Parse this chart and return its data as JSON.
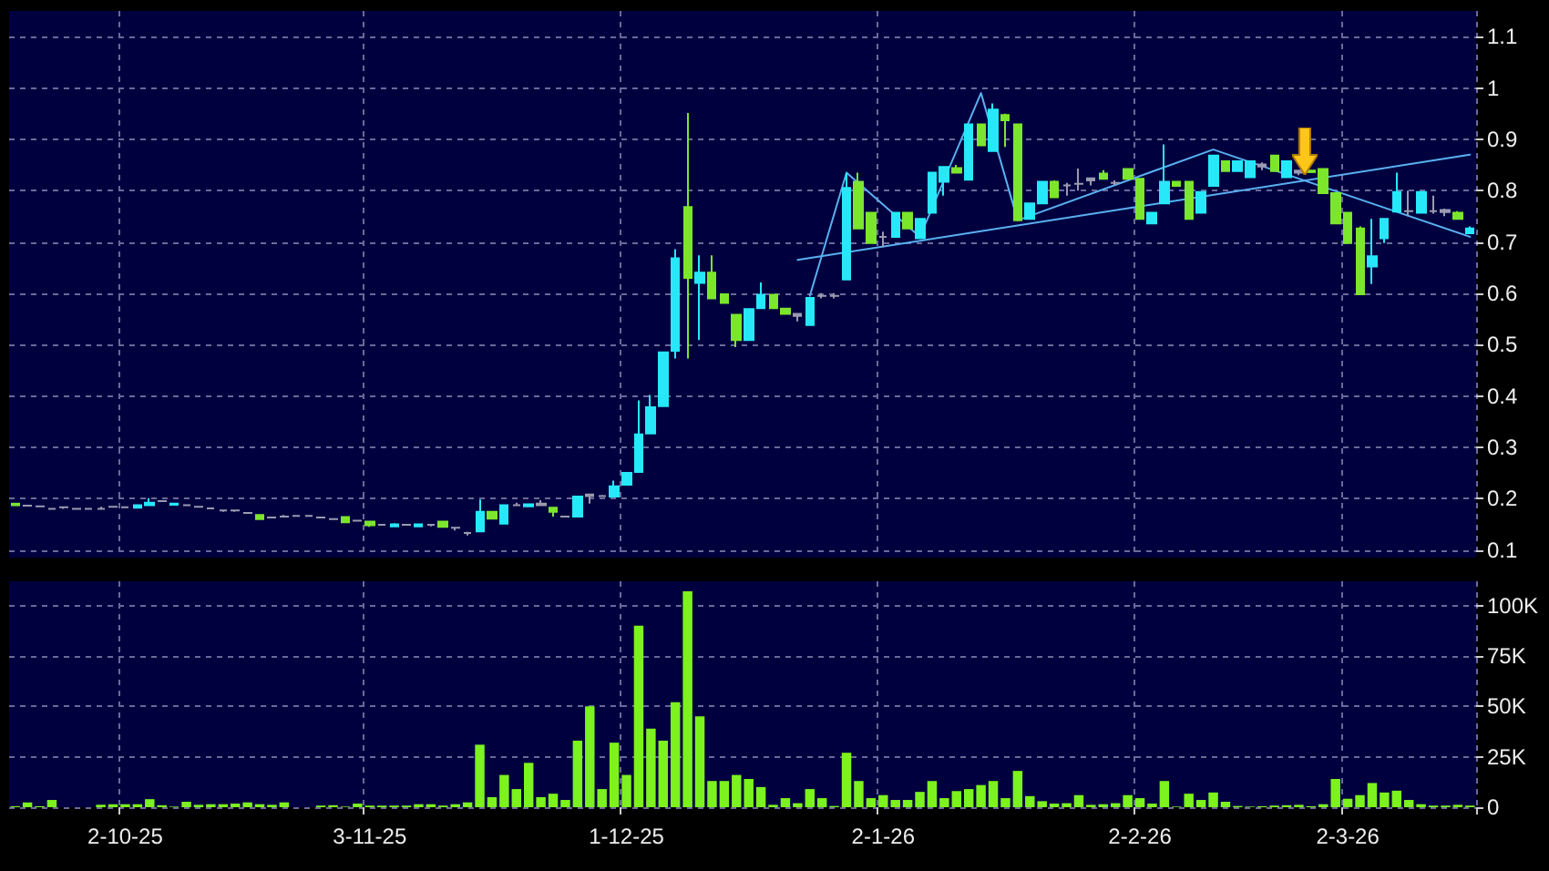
{
  "chart_data": [
    {
      "type": "candlestick",
      "categories": [
        null,
        null,
        null,
        null,
        null,
        null,
        null,
        null,
        null,
        null,
        null,
        null,
        null,
        null,
        null,
        null,
        null,
        null,
        null,
        null,
        null,
        null,
        null,
        null,
        null,
        null,
        null,
        null,
        null,
        null,
        null,
        null,
        null,
        null,
        null,
        null,
        null,
        null,
        null,
        null,
        null,
        null,
        null,
        null,
        null,
        null,
        null,
        null,
        null,
        null,
        null,
        null,
        null,
        null,
        null,
        null,
        null,
        null,
        null,
        null,
        null,
        null,
        null,
        null,
        null,
        null,
        null,
        null,
        null,
        null,
        null,
        null,
        null,
        null,
        null,
        null,
        null,
        null,
        null,
        null,
        null,
        null,
        null,
        null,
        null,
        null,
        null,
        null,
        null,
        null,
        null,
        null,
        null,
        null,
        null,
        null,
        null,
        null,
        null,
        null,
        null,
        null,
        null,
        null,
        null,
        null,
        null,
        null,
        null,
        null,
        null,
        null,
        null,
        null,
        null,
        null,
        null,
        null,
        null,
        null
      ],
      "ohlc": [
        [
          0.19,
          0.19,
          0.187,
          0.187
        ],
        [
          0.186,
          0.187,
          0.185,
          0.186
        ],
        [
          0.185,
          0.186,
          0.184,
          0.185
        ],
        [
          0.18,
          0.181,
          0.179,
          0.18
        ],
        [
          0.183,
          0.184,
          0.18,
          0.183
        ],
        [
          0.18,
          0.181,
          0.179,
          0.18
        ],
        [
          0.18,
          0.181,
          0.179,
          0.18
        ],
        [
          0.18,
          0.184,
          0.179,
          0.18
        ],
        [
          0.184,
          0.185,
          0.183,
          0.184
        ],
        [
          0.183,
          0.184,
          0.182,
          0.183
        ],
        [
          0.182,
          0.187,
          0.182,
          0.187
        ],
        [
          0.187,
          0.201,
          0.187,
          0.192
        ],
        [
          0.195,
          0.196,
          0.194,
          0.195
        ],
        [
          0.188,
          0.192,
          0.188,
          0.19
        ],
        [
          0.187,
          0.188,
          0.186,
          0.187
        ],
        [
          0.184,
          0.185,
          0.183,
          0.184
        ],
        [
          0.181,
          0.182,
          0.18,
          0.181
        ],
        [
          0.177,
          0.178,
          0.174,
          0.177
        ],
        [
          0.177,
          0.178,
          0.174,
          0.177
        ],
        [
          0.172,
          0.173,
          0.171,
          0.172
        ],
        [
          0.168,
          0.168,
          0.16,
          0.16
        ],
        [
          0.163,
          0.165,
          0.162,
          0.163
        ],
        [
          0.165,
          0.168,
          0.164,
          0.165
        ],
        [
          0.166,
          0.167,
          0.165,
          0.166
        ],
        [
          0.166,
          0.167,
          0.165,
          0.166
        ],
        [
          0.163,
          0.164,
          0.162,
          0.163
        ],
        [
          0.16,
          0.161,
          0.159,
          0.16
        ],
        [
          0.164,
          0.164,
          0.154,
          0.154
        ],
        [
          0.157,
          0.158,
          0.156,
          0.157
        ],
        [
          0.155,
          0.155,
          0.145,
          0.148
        ],
        [
          0.149,
          0.15,
          0.148,
          0.149
        ],
        [
          0.146,
          0.152,
          0.146,
          0.15
        ],
        [
          0.149,
          0.15,
          0.148,
          0.149
        ],
        [
          0.146,
          0.15,
          0.146,
          0.15
        ],
        [
          0.149,
          0.15,
          0.146,
          0.149
        ],
        [
          0.155,
          0.155,
          0.145,
          0.145
        ],
        [
          0.143,
          0.143,
          0.138,
          0.143
        ],
        [
          0.133,
          0.135,
          0.128,
          0.133
        ],
        [
          0.136,
          0.198,
          0.136,
          0.174
        ],
        [
          0.174,
          0.174,
          0.161,
          0.161
        ],
        [
          0.151,
          0.187,
          0.151,
          0.187
        ],
        [
          0.187,
          0.192,
          0.186,
          0.187
        ],
        [
          0.185,
          0.19,
          0.185,
          0.189
        ],
        [
          0.187,
          0.197,
          0.186,
          0.19
        ],
        [
          0.182,
          0.182,
          0.165,
          0.174
        ],
        [
          0.165,
          0.166,
          0.164,
          0.165
        ],
        [
          0.165,
          0.204,
          0.165,
          0.204
        ],
        [
          0.205,
          0.208,
          0.19,
          0.208
        ],
        [
          0.205,
          0.207,
          0.203,
          0.205
        ],
        [
          0.204,
          0.235,
          0.204,
          0.224
        ],
        [
          0.227,
          0.25,
          0.227,
          0.25
        ],
        [
          0.252,
          0.391,
          0.252,
          0.325
        ],
        [
          0.327,
          0.402,
          0.327,
          0.378
        ],
        [
          0.38,
          0.485,
          0.38,
          0.485
        ],
        [
          0.488,
          0.686,
          0.473,
          0.668
        ],
        [
          0.768,
          0.951,
          0.473,
          0.63
        ],
        [
          0.62,
          0.674,
          0.509,
          0.64
        ],
        [
          0.64,
          0.674,
          0.59,
          0.59
        ],
        [
          0.598,
          0.598,
          0.581,
          0.581
        ],
        [
          0.558,
          0.558,
          0.495,
          0.509
        ],
        [
          0.509,
          0.569,
          0.509,
          0.569
        ],
        [
          0.571,
          0.621,
          0.571,
          0.597
        ],
        [
          0.597,
          0.597,
          0.571,
          0.571
        ],
        [
          0.57,
          0.57,
          0.56,
          0.56
        ],
        [
          0.556,
          0.56,
          0.545,
          0.56
        ],
        [
          0.538,
          0.591,
          0.538,
          0.591
        ],
        [
          0.595,
          0.6,
          0.59,
          0.595
        ],
        [
          0.595,
          0.6,
          0.59,
          0.595
        ],
        [
          0.627,
          0.835,
          0.627,
          0.805
        ],
        [
          0.817,
          0.835,
          0.726,
          0.726
        ],
        [
          0.757,
          0.757,
          0.698,
          0.698
        ],
        [
          0.71,
          0.72,
          0.69,
          0.71
        ],
        [
          0.71,
          0.757,
          0.71,
          0.757
        ],
        [
          0.757,
          0.757,
          0.726,
          0.726
        ],
        [
          0.707,
          0.745,
          0.707,
          0.745
        ],
        [
          0.757,
          0.835,
          0.757,
          0.835
        ],
        [
          0.817,
          0.846,
          0.79,
          0.846
        ],
        [
          0.844,
          0.85,
          0.835,
          0.835
        ],
        [
          0.821,
          0.929,
          0.821,
          0.929
        ],
        [
          0.929,
          0.929,
          0.888,
          0.888
        ],
        [
          0.877,
          0.97,
          0.877,
          0.958
        ],
        [
          0.947,
          0.95,
          0.885,
          0.937
        ],
        [
          0.929,
          0.929,
          0.742,
          0.742
        ],
        [
          0.745,
          0.775,
          0.745,
          0.775
        ],
        [
          0.775,
          0.817,
          0.775,
          0.817
        ],
        [
          0.817,
          0.82,
          0.787,
          0.787
        ],
        [
          0.81,
          0.815,
          0.79,
          0.81
        ],
        [
          0.813,
          0.843,
          0.8,
          0.813
        ],
        [
          0.82,
          0.825,
          0.81,
          0.824
        ],
        [
          0.833,
          0.84,
          0.823,
          0.823
        ],
        [
          0.815,
          0.82,
          0.81,
          0.815
        ],
        [
          0.842,
          0.842,
          0.823,
          0.823
        ],
        [
          0.823,
          0.823,
          0.745,
          0.745
        ],
        [
          0.736,
          0.757,
          0.736,
          0.757
        ],
        [
          0.775,
          0.89,
          0.775,
          0.817
        ],
        [
          0.817,
          0.817,
          0.809,
          0.809
        ],
        [
          0.817,
          0.817,
          0.745,
          0.745
        ],
        [
          0.757,
          0.797,
          0.757,
          0.797
        ],
        [
          0.809,
          0.868,
          0.809,
          0.868
        ],
        [
          0.857,
          0.857,
          0.838,
          0.838
        ],
        [
          0.838,
          0.857,
          0.838,
          0.857
        ],
        [
          0.826,
          0.857,
          0.826,
          0.857
        ],
        [
          0.847,
          0.855,
          0.84,
          0.851
        ],
        [
          0.868,
          0.868,
          0.838,
          0.838
        ],
        [
          0.826,
          0.857,
          0.826,
          0.857
        ],
        [
          0.835,
          0.84,
          0.83,
          0.839
        ],
        [
          0.839,
          0.839,
          0.836,
          0.836
        ],
        [
          0.842,
          0.842,
          0.795,
          0.795
        ],
        [
          0.795,
          0.795,
          0.736,
          0.736
        ],
        [
          0.757,
          0.757,
          0.698,
          0.698
        ],
        [
          0.726,
          0.73,
          0.598,
          0.598
        ],
        [
          0.652,
          0.745,
          0.618,
          0.672
        ],
        [
          0.707,
          0.745,
          0.698,
          0.745
        ],
        [
          0.759,
          0.835,
          0.759,
          0.797
        ],
        [
          0.76,
          0.8,
          0.75,
          0.76
        ],
        [
          0.757,
          0.797,
          0.757,
          0.797
        ],
        [
          0.76,
          0.79,
          0.755,
          0.76
        ],
        [
          0.758,
          0.765,
          0.75,
          0.762
        ],
        [
          0.757,
          0.76,
          0.745,
          0.745
        ],
        [
          0.717,
          0.73,
          0.717,
          0.726
        ]
      ],
      "colors": [
        "#7ce62c",
        "#9a9ab0",
        "#9a9ab0",
        "#9a9ab0",
        "#9a9ab0",
        "#9a9ab0",
        "#9a9ab0",
        "#9a9ab0",
        "#9a9ab0",
        "#9a9ab0",
        "#26e8f8",
        "#26e8f8",
        "#9a9ab0",
        "#26e8f8",
        "#9a9ab0",
        "#9a9ab0",
        "#9a9ab0",
        "#9a9ab0",
        "#9a9ab0",
        "#9a9ab0",
        "#7ce62c",
        "#9a9ab0",
        "#9a9ab0",
        "#9a9ab0",
        "#9a9ab0",
        "#9a9ab0",
        "#9a9ab0",
        "#7ce62c",
        "#9a9ab0",
        "#7ce62c",
        "#9a9ab0",
        "#26e8f8",
        "#9a9ab0",
        "#26e8f8",
        "#9a9ab0",
        "#7ce62c",
        "#9a9ab0",
        "#9a9ab0",
        "#26e8f8",
        "#7ce62c",
        "#26e8f8",
        "#9a9ab0",
        "#26e8f8",
        "#9a9ab0",
        "#7ce62c",
        "#9a9ab0",
        "#26e8f8",
        "#9a9ab0",
        "#9a9ab0",
        "#26e8f8",
        "#26e8f8",
        "#26e8f8",
        "#26e8f8",
        "#26e8f8",
        "#26e8f8",
        "#7ce62c",
        "#26e8f8",
        "#7ce62c",
        "#7ce62c",
        "#7ce62c",
        "#26e8f8",
        "#26e8f8",
        "#7ce62c",
        "#7ce62c",
        "#9a9ab0",
        "#26e8f8",
        "#9a9ab0",
        "#9a9ab0",
        "#26e8f8",
        "#7ce62c",
        "#7ce62c",
        "#9a9ab0",
        "#26e8f8",
        "#7ce62c",
        "#26e8f8",
        "#26e8f8",
        "#26e8f8",
        "#7ce62c",
        "#26e8f8",
        "#7ce62c",
        "#26e8f8",
        "#7ce62c",
        "#7ce62c",
        "#26e8f8",
        "#26e8f8",
        "#7ce62c",
        "#9a9ab0",
        "#9a9ab0",
        "#9a9ab0",
        "#7ce62c",
        "#9a9ab0",
        "#7ce62c",
        "#7ce62c",
        "#26e8f8",
        "#26e8f8",
        "#7ce62c",
        "#7ce62c",
        "#26e8f8",
        "#26e8f8",
        "#7ce62c",
        "#26e8f8",
        "#26e8f8",
        "#9a9ab0",
        "#7ce62c",
        "#26e8f8",
        "#9a9ab0",
        "#7ce62c",
        "#7ce62c",
        "#7ce62c",
        "#7ce62c",
        "#7ce62c",
        "#26e8f8",
        "#26e8f8",
        "#26e8f8",
        "#9a9ab0",
        "#26e8f8",
        "#9a9ab0",
        "#9a9ab0",
        "#7ce62c",
        "#26e8f8"
      ],
      "series": [
        {
          "type": "line",
          "color": "#5ab0f0",
          "values": [
            null,
            null,
            null,
            null,
            null,
            null,
            null,
            null,
            null,
            null,
            null,
            null,
            null,
            null,
            null,
            null,
            null,
            null,
            null,
            null,
            null,
            null,
            null,
            null,
            null,
            null,
            null,
            null,
            null,
            null,
            null,
            null,
            null,
            null,
            null,
            null,
            null,
            null,
            null,
            null,
            null,
            null,
            null,
            null,
            null,
            null,
            null,
            null,
            null,
            null,
            null,
            null,
            null,
            null,
            null,
            null,
            null,
            null,
            null,
            null,
            null,
            null,
            null,
            null,
            null,
            0.595,
            null,
            null,
            0.835,
            null,
            null,
            null,
            null,
            null,
            0.71,
            null,
            null,
            null,
            null,
            0.99,
            null,
            null,
            0.742,
            null,
            null,
            null,
            null,
            null,
            null,
            null,
            null,
            null,
            null,
            null,
            null,
            null,
            null,
            null,
            0.88,
            null,
            null,
            null,
            null,
            null,
            null,
            null,
            null,
            null,
            null,
            null,
            null,
            null,
            null,
            null,
            null,
            null,
            null,
            null,
            null,
            0.71
          ]
        },
        {
          "type": "line",
          "color": "#5ab0f0",
          "values": [
            null,
            null,
            null,
            null,
            null,
            null,
            null,
            null,
            null,
            null,
            null,
            null,
            null,
            null,
            null,
            null,
            null,
            null,
            null,
            null,
            null,
            null,
            null,
            null,
            null,
            null,
            null,
            null,
            null,
            null,
            null,
            null,
            null,
            null,
            null,
            null,
            null,
            null,
            null,
            null,
            null,
            null,
            null,
            null,
            null,
            null,
            null,
            null,
            null,
            null,
            null,
            null,
            null,
            null,
            null,
            null,
            null,
            null,
            null,
            null,
            null,
            null,
            null,
            null,
            0.665,
            null,
            null,
            null,
            null,
            null,
            null,
            null,
            null,
            null,
            null,
            null,
            null,
            null,
            null,
            null,
            null,
            null,
            null,
            null,
            null,
            null,
            null,
            null,
            null,
            null,
            null,
            null,
            null,
            null,
            null,
            null,
            null,
            null,
            null,
            null,
            null,
            null,
            null,
            null,
            null,
            null,
            null,
            null,
            null,
            null,
            null,
            null,
            null,
            null,
            null,
            null,
            null,
            null,
            null,
            0.87
          ]
        }
      ],
      "ylim": [
        0.085,
        1.15
      ],
      "yticks": [
        0.1,
        0.2,
        0.3,
        0.4,
        0.5,
        0.6,
        0.7,
        0.8,
        0.9,
        1,
        1.1
      ],
      "grid": true,
      "tick_labels": "y"
    },
    {
      "type": "bar",
      "categories": [
        null,
        null,
        null,
        null,
        null,
        null,
        null,
        null,
        null,
        "2-10-25",
        null,
        null,
        null,
        null,
        null,
        null,
        null,
        null,
        null,
        null,
        null,
        null,
        null,
        null,
        null,
        null,
        null,
        null,
        null,
        "3-11-25",
        null,
        null,
        null,
        null,
        null,
        null,
        null,
        null,
        null,
        null,
        null,
        null,
        null,
        null,
        null,
        null,
        null,
        null,
        null,
        null,
        "1-12-25",
        null,
        null,
        null,
        null,
        null,
        null,
        null,
        null,
        null,
        null,
        null,
        null,
        null,
        null,
        null,
        null,
        null,
        null,
        null,
        null,
        "2-1-26",
        null,
        null,
        null,
        null,
        null,
        null,
        null,
        null,
        null,
        null,
        null,
        null,
        null,
        null,
        null,
        null,
        null,
        null,
        null,
        null,
        "2-2-26",
        null,
        null,
        null,
        null,
        null,
        null,
        null,
        null,
        null,
        null,
        null,
        null,
        null,
        null,
        null,
        null,
        "2-3-26",
        null,
        null,
        null,
        null,
        null,
        null,
        null,
        null,
        null,
        null
      ],
      "values": [
        500,
        2400,
        500,
        3600,
        null,
        null,
        null,
        1200,
        1500,
        1500,
        1500,
        4000,
        1000,
        300,
        2700,
        1200,
        1500,
        1500,
        1800,
        2400,
        1500,
        1200,
        2400,
        null,
        null,
        800,
        1000,
        300,
        1800,
        800,
        800,
        800,
        800,
        1500,
        1500,
        800,
        1500,
        2400,
        31000,
        5000,
        16000,
        9000,
        22000,
        5000,
        6700,
        3600,
        33000,
        50000,
        9000,
        32000,
        16000,
        90000,
        39000,
        33000,
        52000,
        107000,
        45000,
        13000,
        13000,
        16000,
        14000,
        10000,
        1200,
        4500,
        2000,
        9000,
        4500,
        600,
        27000,
        13000,
        4500,
        6000,
        3600,
        3600,
        7600,
        13000,
        4500,
        8000,
        9000,
        11000,
        13000,
        4500,
        18000,
        5500,
        3000,
        1800,
        2000,
        6000,
        1200,
        1500,
        2000,
        6000,
        4500,
        1800,
        13000,
        300,
        6700,
        3600,
        7300,
        2700,
        600,
        300,
        500,
        800,
        1000,
        1200,
        500,
        1500,
        14000,
        4200,
        6000,
        12000,
        7300,
        8200,
        3600,
        1500,
        800,
        800,
        1200,
        800
      ],
      "color": "#7cf21e",
      "ylim": [
        0,
        112000
      ],
      "yticks": [
        0,
        {
          "value": 25000,
          "label": "25K"
        },
        {
          "value": 50000,
          "label": "50K"
        },
        {
          "value": 75000,
          "label": "75K"
        },
        {
          "value": 100000,
          "label": "100K"
        }
      ],
      "grid": true
    }
  ]
}
